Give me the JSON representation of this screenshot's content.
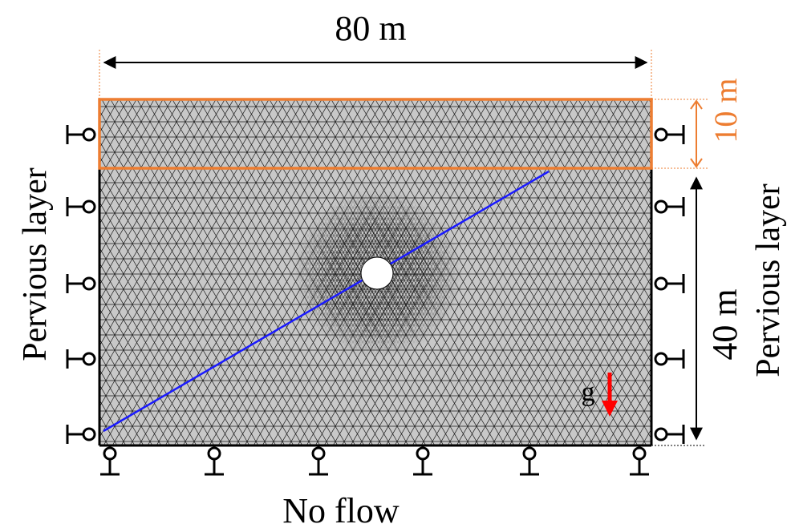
{
  "labels": {
    "width_dim": "80 m",
    "top_layer_dim": "10 m",
    "depth_dim": "40 m",
    "left_boundary": "Pervious layer",
    "right_boundary": "Pervious layer",
    "bottom_boundary": "No flow",
    "gravity": "g"
  },
  "colors": {
    "mesh_fill": "#c8c8c8",
    "mesh_line": "#1a1a1a",
    "top_layer_outline": "#ed7d31",
    "fault_line": "#1a1aff",
    "gravity_arrow": "#ff0000",
    "text": "#000000",
    "top_dim_text": "#ed7d31"
  },
  "icons": {
    "roller_support": "roller-support-icon",
    "gravity": "gravity-arrow-icon",
    "tunnel": "tunnel-opening"
  }
}
